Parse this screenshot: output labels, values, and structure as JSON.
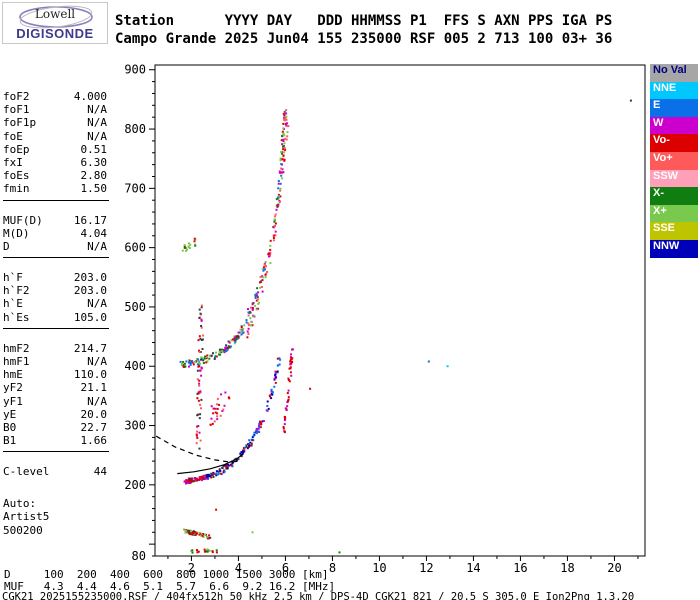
{
  "logo": {
    "line1": "Lowell",
    "line2": "DIGISONDE"
  },
  "header": {
    "line1": "Station      YYYY DAY   DDD HHMMSS P1  FFS S AXN PPS IGA PS",
    "line2": "Campo Grande 2025 Jun04 155 235000 RSF 005 2 713 100 03+ 36"
  },
  "params": {
    "groups": [
      [
        [
          "foF2",
          "4.000"
        ],
        [
          "foF1",
          "N/A"
        ],
        [
          "foF1p",
          "N/A"
        ],
        [
          "foE",
          "N/A"
        ],
        [
          "foEp",
          "0.51"
        ],
        [
          "fxI",
          "6.30"
        ],
        [
          "foEs",
          "2.80"
        ],
        [
          "fmin",
          "1.50"
        ]
      ],
      [
        [
          "MUF(D)",
          "16.17"
        ],
        [
          "M(D)",
          "4.04"
        ],
        [
          "D",
          "N/A"
        ]
      ],
      [
        [
          "h`F",
          "203.0"
        ],
        [
          "h`F2",
          "203.0"
        ],
        [
          "h`E",
          "N/A"
        ],
        [
          "h`Es",
          "105.0"
        ]
      ],
      [
        [
          "hmF2",
          "214.7"
        ],
        [
          "hmF1",
          "N/A"
        ],
        [
          "hmE",
          "110.0"
        ],
        [
          "yF2",
          "21.1"
        ],
        [
          "yF1",
          "N/A"
        ],
        [
          "yE",
          "20.0"
        ],
        [
          "B0",
          "22.7"
        ],
        [
          "B1",
          "1.66"
        ]
      ],
      [
        [
          "C-level",
          "44"
        ]
      ]
    ],
    "auto_block": [
      "Auto:",
      "Artist5",
      "500200"
    ]
  },
  "legend": {
    "items": [
      {
        "label": "No Val",
        "bg": "#a6a6a6",
        "fg": "#000080"
      },
      {
        "label": "NNE",
        "bg": "#00c8ff",
        "fg": "#ffffff"
      },
      {
        "label": "E",
        "bg": "#0a70e8",
        "fg": "#ffffff"
      },
      {
        "label": "W",
        "bg": "#cc00cc",
        "fg": "#ffffff"
      },
      {
        "label": "Vo-",
        "bg": "#dd0000",
        "fg": "#ffffff"
      },
      {
        "label": "Vo+",
        "bg": "#ff5a5a",
        "fg": "#ffffff"
      },
      {
        "label": "SSW",
        "bg": "#ff9fb8",
        "fg": "#ffffff"
      },
      {
        "label": "X-",
        "bg": "#0f7d0f",
        "fg": "#ffffff"
      },
      {
        "label": "X+",
        "bg": "#79c94f",
        "fg": "#ffffff"
      },
      {
        "label": "SSE",
        "bg": "#bfc400",
        "fg": "#ffffff"
      },
      {
        "label": "NNW",
        "bg": "#0000b8",
        "fg": "#ffffff"
      }
    ]
  },
  "bottom": {
    "d_line": "D     100  200  400  600  800 1000 1500 3000 [km]",
    "muf_line": "MUF   4.3  4.4  4.6  5.1  5.7  6.6  9.2 16.2 [MHz]",
    "footer": "CGK21_2025155235000.RSF / 404fx512h 50 kHz 2.5 km / DPS-4D CGK21 821 / 20.5 S 305.0 E Ion2Png 1.3.20"
  },
  "chart_data": {
    "type": "scatter",
    "description": "Digisonde ionogram: echo virtual height [km] vs sounding frequency [MHz]",
    "x_unit": "MHz",
    "y_unit": "km",
    "xlim": [
      0.45,
      21.3
    ],
    "ylim": [
      80,
      908
    ],
    "x_tick_labels": [
      2,
      4,
      6,
      8,
      10,
      12,
      14,
      16,
      18,
      20
    ],
    "y_tick_labels": [
      900,
      800,
      700,
      600,
      500,
      400,
      300,
      200,
      80
    ],
    "grid": false,
    "legend_position": "right",
    "dot_size": 2,
    "seed": 987654321,
    "colors": {
      "DK": "#3a3a3a",
      "NoVal": "#a6a6a6",
      "NNE": "#00c8ff",
      "E": "#0a70e8",
      "W": "#cc00cc",
      "Vo-": "#dd0000",
      "Vo+": "#ff5a5a",
      "SSW": "#ff9fb8",
      "X-": "#0f7d0f",
      "X+": "#79c94f",
      "SSE": "#bfc400",
      "NNW": "#0000b8"
    },
    "traces": [
      {
        "name": "es-layer",
        "n": 70,
        "jitter": [
          0.06,
          3
        ],
        "colors": [
          "Vo-",
          "Vo-",
          "Vo-",
          "X+",
          "DK"
        ],
        "path": [
          [
            1.7,
            122
          ],
          [
            2.2,
            118
          ],
          [
            2.8,
            112
          ]
        ]
      },
      {
        "name": "es-low-scatter",
        "n": 20,
        "jitter": [
          0.18,
          3
        ],
        "colors": [
          "Vo-",
          "X+",
          "X-"
        ],
        "path": [
          [
            1.9,
            88
          ],
          [
            2.5,
            90
          ],
          [
            3.1,
            87
          ]
        ]
      },
      {
        "name": "f-trace-low",
        "n": 75,
        "jitter": [
          0.05,
          4
        ],
        "colors": [
          "Vo-",
          "Vo-",
          "DK",
          "W"
        ],
        "path": [
          [
            1.75,
            206
          ],
          [
            2.2,
            209
          ],
          [
            2.7,
            213
          ]
        ]
      },
      {
        "name": "f-trace-mid",
        "n": 95,
        "jitter": [
          0.06,
          5
        ],
        "colors": [
          "NNW",
          "NNW",
          "E",
          "DK",
          "Vo-"
        ],
        "path": [
          [
            2.7,
            213
          ],
          [
            3.2,
            222
          ],
          [
            3.7,
            235
          ],
          [
            4.2,
            255
          ],
          [
            4.6,
            275
          ]
        ]
      },
      {
        "name": "f-trace-high",
        "n": 60,
        "jitter": [
          0.05,
          7
        ],
        "colors": [
          "NNW",
          "E",
          "W",
          "Vo-"
        ],
        "path": [
          [
            4.6,
            275
          ],
          [
            5.0,
            305
          ],
          [
            5.35,
            345
          ],
          [
            5.6,
            385
          ],
          [
            5.8,
            428
          ]
        ]
      },
      {
        "name": "x-trace-steep",
        "n": 45,
        "jitter": [
          0.04,
          9
        ],
        "colors": [
          "Vo-",
          "Vo-",
          "W"
        ],
        "path": [
          [
            5.9,
            285
          ],
          [
            6.05,
            330
          ],
          [
            6.2,
            390
          ],
          [
            6.3,
            430
          ]
        ]
      },
      {
        "name": "second-order-flat",
        "n": 115,
        "jitter": [
          0.07,
          6
        ],
        "colors": [
          "Vo-",
          "X-",
          "W",
          "E",
          "DK",
          "X+"
        ],
        "path": [
          [
            1.55,
            402
          ],
          [
            2.1,
            406
          ],
          [
            2.7,
            413
          ],
          [
            3.3,
            425
          ],
          [
            3.8,
            442
          ],
          [
            4.1,
            455
          ]
        ]
      },
      {
        "name": "second-order-rise",
        "n": 130,
        "jitter": [
          0.06,
          10
        ],
        "colors": [
          "Vo-",
          "X-",
          "X+",
          "W",
          "E",
          "Vo+"
        ],
        "path": [
          [
            4.1,
            458
          ],
          [
            4.6,
            500
          ],
          [
            5.0,
            548
          ],
          [
            5.4,
            610
          ],
          [
            5.7,
            690
          ],
          [
            5.9,
            775
          ],
          [
            6.0,
            830
          ]
        ]
      },
      {
        "name": "second-order-rise-x",
        "n": 75,
        "jitter": [
          0.05,
          9
        ],
        "colors": [
          "Vo-",
          "W",
          "X+",
          "Vo+"
        ],
        "path": [
          [
            4.35,
            450
          ],
          [
            4.85,
            505
          ],
          [
            5.3,
            575
          ],
          [
            5.65,
            655
          ],
          [
            5.9,
            745
          ],
          [
            6.1,
            815
          ]
        ]
      },
      {
        "name": "spread-column",
        "n": 60,
        "jitter": [
          0.1,
          14
        ],
        "colors": [
          "W",
          "Vo-",
          "Vo+",
          "DK"
        ],
        "path": [
          [
            2.3,
            270
          ],
          [
            2.35,
            380
          ],
          [
            2.45,
            500
          ]
        ]
      },
      {
        "name": "spread-mid",
        "n": 25,
        "jitter": [
          0.25,
          16
        ],
        "colors": [
          "W",
          "Vo+",
          "Vo-"
        ],
        "path": [
          [
            2.9,
            310
          ],
          [
            3.3,
            330
          ],
          [
            3.6,
            350
          ]
        ]
      },
      {
        "name": "third-order",
        "n": 18,
        "jitter": [
          0.1,
          6
        ],
        "colors": [
          "X+",
          "X-",
          "Vo-"
        ],
        "path": [
          [
            1.6,
            598
          ],
          [
            1.9,
            605
          ],
          [
            2.2,
            612
          ]
        ]
      }
    ],
    "strays": [
      [
        20.7,
        848,
        "DK"
      ],
      [
        12.1,
        408,
        "E"
      ],
      [
        12.9,
        400,
        "NNE"
      ],
      [
        7.05,
        362,
        "Vo-"
      ],
      [
        8.3,
        86,
        "X-"
      ],
      [
        3.05,
        158,
        "Vo-"
      ],
      [
        4.6,
        120,
        "X+"
      ]
    ],
    "model_lines": [
      {
        "style": "dashed",
        "points": [
          [
            0.5,
            282
          ],
          [
            1.3,
            264
          ],
          [
            2.2,
            250
          ],
          [
            3.0,
            242
          ],
          [
            3.7,
            238
          ],
          [
            4.1,
            241
          ]
        ]
      },
      {
        "style": "solid",
        "points": [
          [
            1.4,
            219
          ],
          [
            2.1,
            222
          ],
          [
            2.8,
            227
          ],
          [
            3.4,
            234
          ],
          [
            3.9,
            243
          ],
          [
            4.2,
            252
          ]
        ]
      }
    ]
  }
}
